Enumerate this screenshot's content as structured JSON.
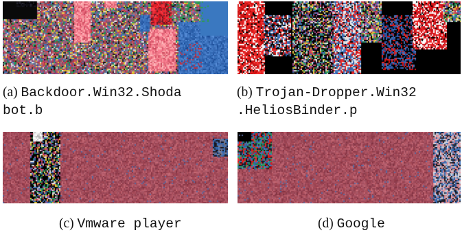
{
  "figure": {
    "panels": [
      {
        "id": "a",
        "label": "(a)",
        "name_line1": "Backdoor.Win32.Shoda",
        "name_line2": "bot.b",
        "image": "Byteplot visualization of a malware sample"
      },
      {
        "id": "b",
        "label": "(b)",
        "name_line1": "Trojan-Dropper.Win32",
        "name_line2": ".HeliosBinder.p",
        "image": "Byteplot visualization of a malware sample"
      },
      {
        "id": "c",
        "label": "(c)",
        "name_line1": "Vmware player",
        "image": "Byteplot visualization of a benign binary"
      },
      {
        "id": "d",
        "label": "(d)",
        "name_line1": "Google",
        "image": "Byteplot visualization of a benign binary"
      }
    ]
  },
  "colors": {
    "noise_red": "#b84a5a",
    "noise_blue": "#3a78c0",
    "noise_green": "#2f9a52",
    "bright_red": "#e02020",
    "black": "#000000",
    "white": "#ffffff"
  }
}
